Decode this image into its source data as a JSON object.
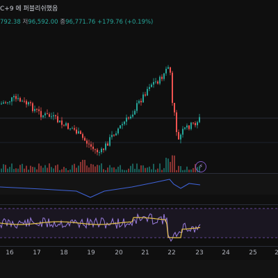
{
  "header": {
    "title_fragment": "C+9 에 퍼블리쉬했음",
    "ohlc": {
      "open_fragment": "792.38",
      "high_label": "저",
      "high_value": "96,592.00",
      "close_label": "종",
      "close_value": "96,771.76",
      "change": "+179.76 (+0.19%)"
    }
  },
  "xaxis": {
    "labels": [
      "16",
      "17",
      "18",
      "19",
      "20",
      "21",
      "22",
      "23",
      "24",
      "25",
      "2"
    ]
  },
  "colors": {
    "up": "#26a69a",
    "down": "#ef5350",
    "rsi": "#7e57c2",
    "ema": "#e7c34a",
    "obv": "#3f63d8"
  },
  "icons": {
    "alert": "lightning-bolt-icon"
  },
  "chart_data": {
    "type": "candlestick",
    "x_categories": [
      "16",
      "17",
      "18",
      "19",
      "20",
      "21",
      "22",
      "23",
      "24",
      "25"
    ],
    "price_trend": [
      0.5,
      0.47,
      0.58,
      0.66,
      0.6,
      0.42,
      0.15,
      0.64,
      0.52
    ]
  }
}
